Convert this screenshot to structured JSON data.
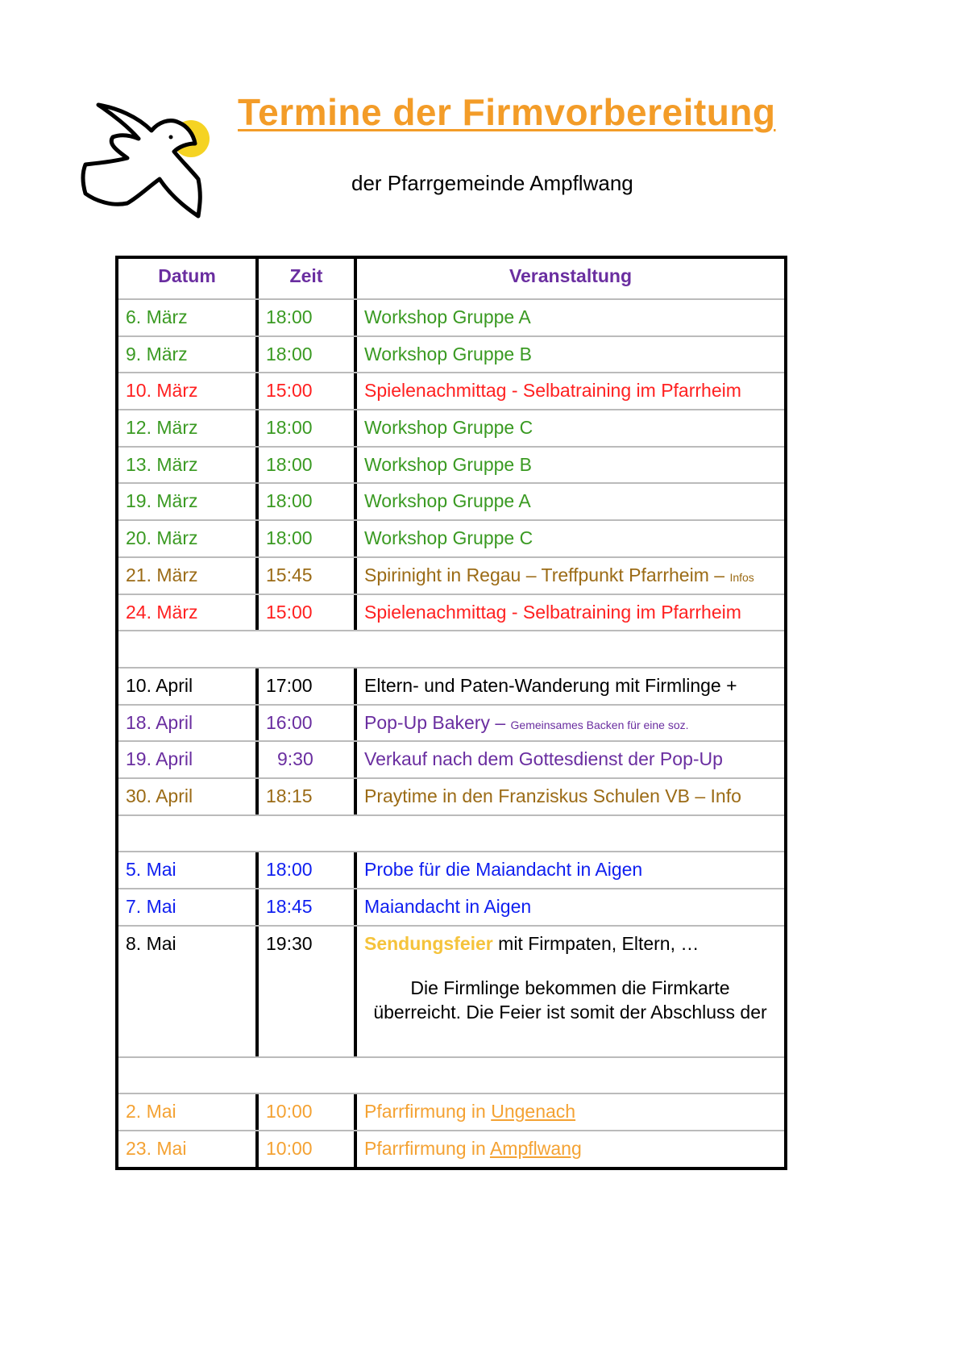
{
  "title": "Termine der Firmvorbereitung",
  "subtitle": "der Pfarrgemeinde Ampflwang",
  "colors": {
    "title": "#f39c28",
    "header": "#6a2ea0",
    "green": "#3a9a22",
    "red": "#ff2020",
    "brown": "#9b6b16",
    "purple": "#6a2ea0",
    "blue": "#1020f0",
    "orange": "#f4a233",
    "yellow": "#f5c33b",
    "black": "#000000"
  },
  "table": {
    "headers": [
      "Datum",
      "Zeit",
      "Veranstaltung"
    ],
    "rows": [
      {
        "date": "6. März",
        "time": "18:00",
        "event": "Workshop Gruppe A",
        "color": "#3a9a22"
      },
      {
        "date": "9. März",
        "time": "18:00",
        "event": "Workshop Gruppe B",
        "color": "#3a9a22"
      },
      {
        "date": "10. März",
        "time": "15:00",
        "event": "Spielenachmittag - Selbatraining im Pfarrheim",
        "color": "#ff2020"
      },
      {
        "date": "12. März",
        "time": "18:00",
        "event": "Workshop Gruppe C",
        "color": "#3a9a22"
      },
      {
        "date": "13. März",
        "time": "18:00",
        "event": "Workshop Gruppe B",
        "color": "#3a9a22"
      },
      {
        "date": "19. März",
        "time": "18:00",
        "event": "Workshop Gruppe A",
        "color": "#3a9a22"
      },
      {
        "date": "20. März",
        "time": "18:00",
        "event": "Workshop Gruppe C",
        "color": "#3a9a22"
      },
      {
        "date": "21. März",
        "time": "15:45",
        "event": "Spirinight in Regau – Treffpunkt Pfarrheim – ",
        "event_small": "Infos",
        "color": "#9b6b16"
      },
      {
        "date": "24. März",
        "time": "15:00",
        "event": "Spielenachmittag - Selbatraining im Pfarrheim",
        "color": "#ff2020"
      },
      {
        "date": "10. April",
        "time": "17:00",
        "event": "Eltern- und Paten-Wanderung mit Firmlinge +",
        "color": "#000000"
      },
      {
        "date": "18. April",
        "time": "16:00",
        "event": "Pop-Up Bakery – ",
        "event_small": "Gemeinsames Backen für eine soz.",
        "color": "#6a2ea0"
      },
      {
        "date": "19. April",
        "time": "9:30",
        "event": "Verkauf nach dem Gottesdienst der Pop-Up",
        "color": "#6a2ea0"
      },
      {
        "date": "30. April",
        "time": "18:15",
        "event": "Praytime in den Franziskus Schulen VB – Info",
        "color": "#9b6b16"
      },
      {
        "date": "5. Mai",
        "time": "18:00",
        "event": "Probe für die Maiandacht in Aigen",
        "color": "#1020f0"
      },
      {
        "date": "7. Mai",
        "time": "18:45",
        "event": "Maiandacht in Aigen",
        "color": "#1020f0"
      },
      {
        "date": "8. Mai",
        "time": "19:30",
        "event_highlight": "Sendungsfeier",
        "event": " mit Firmpaten, Eltern, …",
        "description": "Die Firmlinge bekommen die Firmkarte überreicht. Die Feier ist somit der Abschluss der",
        "color": "#000000"
      },
      {
        "date": "2. Mai",
        "time": "10:00",
        "event": "Pfarrfirmung in ",
        "event_link": "Ungenach",
        "color": "#f4a233"
      },
      {
        "date": "23. Mai",
        "time": "10:00",
        "event": "Pfarrfirmung in ",
        "event_link": "Ampflwang",
        "color": "#f4a233"
      }
    ]
  }
}
